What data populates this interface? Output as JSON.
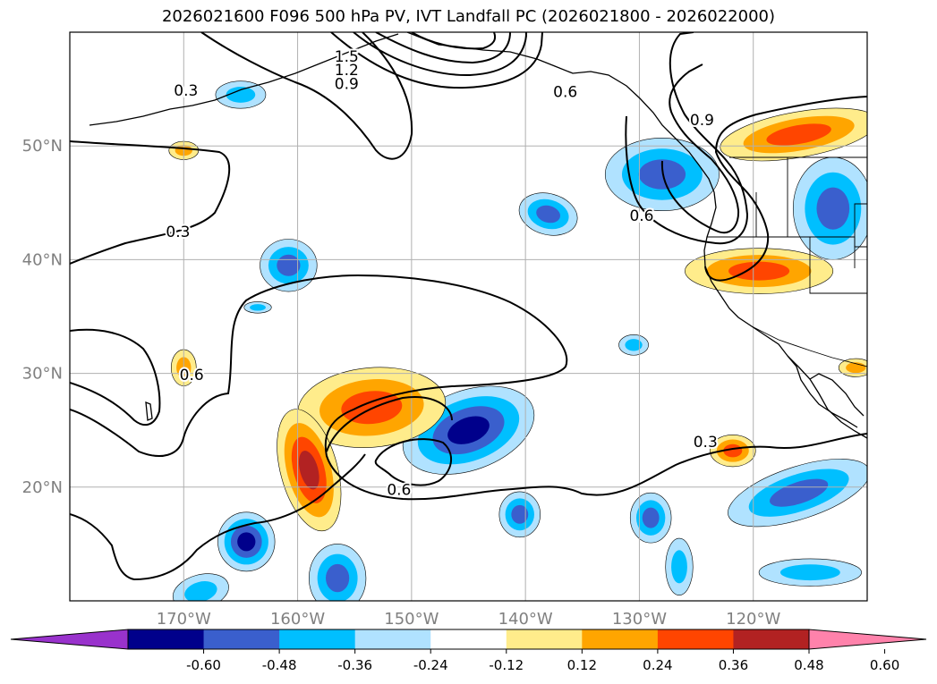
{
  "title": "2026021600 F096 500 hPa PV, IVT Landfall PC (2026021800 - 2026022000)",
  "colors": {
    "land_outline": "#000000",
    "grid": "#b0b0b0",
    "axis_label": "#808080",
    "contour": "#000000"
  },
  "map": {
    "lon_range": [
      -180,
      -110
    ],
    "lat_range": [
      10,
      60
    ],
    "lat_ticks": [
      {
        "value": 20,
        "label": "20°N"
      },
      {
        "value": 30,
        "label": "30°N"
      },
      {
        "value": 40,
        "label": "40°N"
      },
      {
        "value": 50,
        "label": "50°N"
      }
    ],
    "lon_ticks": [
      {
        "value": -170,
        "label": "170°W"
      },
      {
        "value": -160,
        "label": "160°W"
      },
      {
        "value": -150,
        "label": "150°W"
      },
      {
        "value": -140,
        "label": "140°W"
      },
      {
        "value": -130,
        "label": "130°W"
      },
      {
        "value": -120,
        "label": "120°W"
      }
    ],
    "contour_labels": [
      {
        "text": "1.5",
        "lon": -155.7,
        "lat": 57.8
      },
      {
        "text": "1.2",
        "lon": -155.7,
        "lat": 56.6
      },
      {
        "text": "0.9",
        "lon": -155.7,
        "lat": 55.4
      },
      {
        "text": "0.6",
        "lon": -136.5,
        "lat": 54.7
      },
      {
        "text": "0.3",
        "lon": -169.8,
        "lat": 54.8
      },
      {
        "text": "0.9",
        "lon": -124.5,
        "lat": 52.2
      },
      {
        "text": "0.6",
        "lon": -129.8,
        "lat": 43.8
      },
      {
        "text": "0.3",
        "lon": -170.5,
        "lat": 42.4
      },
      {
        "text": "0.6",
        "lon": -169.3,
        "lat": 29.8
      },
      {
        "text": "0.6",
        "lon": -151.1,
        "lat": 19.7
      },
      {
        "text": "0.3",
        "lon": -124.2,
        "lat": 23.9
      }
    ]
  },
  "colorbar": {
    "ticks": [
      "-0.60",
      "-0.48",
      "-0.36",
      "-0.24",
      "-0.12",
      "0.12",
      "0.24",
      "0.36",
      "0.48",
      "0.60"
    ],
    "colors": [
      "#9932cc",
      "#00008b",
      "#3a5fcd",
      "#00bfff",
      "#b0e2ff",
      "#ffffff",
      "#ffec8b",
      "#ffa500",
      "#ff4500",
      "#b22222",
      "#ff82ab"
    ]
  },
  "shaded_anomalies": [
    {
      "lon": -128.0,
      "lat": 47.5,
      "rx": 5.0,
      "ry": 3.2,
      "rot": 0,
      "levels": [
        -0.12,
        -0.24,
        -0.36
      ]
    },
    {
      "lon": -113.0,
      "lat": 44.5,
      "rx": 3.5,
      "ry": 4.5,
      "rot": 0,
      "levels": [
        -0.12,
        -0.24,
        -0.36
      ]
    },
    {
      "lon": -145.0,
      "lat": 25.0,
      "rx": 6.0,
      "ry": 3.5,
      "rot": -20,
      "levels": [
        -0.12,
        -0.24,
        -0.36,
        -0.48
      ]
    },
    {
      "lon": -116.0,
      "lat": 19.5,
      "rx": 6.5,
      "ry": 2.3,
      "rot": -18,
      "levels": [
        -0.12,
        -0.24,
        -0.36
      ]
    },
    {
      "lon": -115.0,
      "lat": 12.5,
      "rx": 4.5,
      "ry": 1.2,
      "rot": 0,
      "levels": [
        -0.12,
        -0.24
      ]
    },
    {
      "lon": -164.5,
      "lat": 15.2,
      "rx": 2.5,
      "ry": 2.6,
      "rot": 0,
      "levels": [
        -0.12,
        -0.24,
        -0.36,
        -0.48
      ]
    },
    {
      "lon": -156.5,
      "lat": 12.0,
      "rx": 2.5,
      "ry": 3.0,
      "rot": 0,
      "levels": [
        -0.12,
        -0.24,
        -0.36
      ]
    },
    {
      "lon": -168.5,
      "lat": 10.8,
      "rx": 2.5,
      "ry": 1.5,
      "rot": -15,
      "levels": [
        -0.12,
        -0.24
      ]
    },
    {
      "lon": -140.5,
      "lat": 17.6,
      "rx": 1.8,
      "ry": 2.0,
      "rot": 0,
      "levels": [
        -0.12,
        -0.24,
        -0.36
      ]
    },
    {
      "lon": -129.0,
      "lat": 17.3,
      "rx": 1.8,
      "ry": 2.2,
      "rot": 0,
      "levels": [
        -0.12,
        -0.24,
        -0.36
      ]
    },
    {
      "lon": -126.5,
      "lat": 13.0,
      "rx": 1.2,
      "ry": 2.5,
      "rot": 0,
      "levels": [
        -0.12,
        -0.24
      ]
    },
    {
      "lon": -138.0,
      "lat": 44.0,
      "rx": 2.6,
      "ry": 1.8,
      "rot": 15,
      "levels": [
        -0.12,
        -0.24,
        -0.36
      ]
    },
    {
      "lon": -160.8,
      "lat": 39.5,
      "rx": 2.5,
      "ry": 2.3,
      "rot": 0,
      "levels": [
        -0.12,
        -0.24,
        -0.36
      ]
    },
    {
      "lon": -165.0,
      "lat": 54.5,
      "rx": 2.2,
      "ry": 1.2,
      "rot": 0,
      "levels": [
        -0.12,
        -0.24
      ]
    },
    {
      "lon": -130.5,
      "lat": 32.5,
      "rx": 1.3,
      "ry": 0.9,
      "rot": 0,
      "levels": [
        -0.12,
        -0.24
      ]
    },
    {
      "lon": -163.5,
      "lat": 35.8,
      "rx": 1.2,
      "ry": 0.5,
      "rot": 0,
      "levels": [
        -0.12,
        -0.24
      ]
    },
    {
      "lon": -153.5,
      "lat": 27.0,
      "rx": 6.5,
      "ry": 3.5,
      "rot": -5,
      "levels": [
        0.12,
        0.24,
        0.36
      ]
    },
    {
      "lon": -159.0,
      "lat": 21.5,
      "rx": 2.5,
      "ry": 5.5,
      "rot": -15,
      "levels": [
        0.12,
        0.24,
        0.36,
        0.48
      ]
    },
    {
      "lon": -119.5,
      "lat": 39.0,
      "rx": 6.5,
      "ry": 2.0,
      "rot": 0,
      "levels": [
        0.12,
        0.24,
        0.36
      ]
    },
    {
      "lon": -116.0,
      "lat": 51.0,
      "rx": 7.0,
      "ry": 2.0,
      "rot": -10,
      "levels": [
        0.12,
        0.24,
        0.36
      ]
    },
    {
      "lon": -121.8,
      "lat": 23.2,
      "rx": 2.0,
      "ry": 1.4,
      "rot": 0,
      "levels": [
        0.12,
        0.24,
        0.36
      ]
    },
    {
      "lon": -170.0,
      "lat": 30.5,
      "rx": 1.1,
      "ry": 1.6,
      "rot": 0,
      "levels": [
        0.12,
        0.24
      ]
    },
    {
      "lon": -170.0,
      "lat": 49.6,
      "rx": 1.3,
      "ry": 0.8,
      "rot": 0,
      "levels": [
        0.12,
        0.24
      ]
    },
    {
      "lon": -111.0,
      "lat": 30.5,
      "rx": 1.5,
      "ry": 0.8,
      "rot": 0,
      "levels": [
        0.12,
        0.24
      ]
    }
  ]
}
